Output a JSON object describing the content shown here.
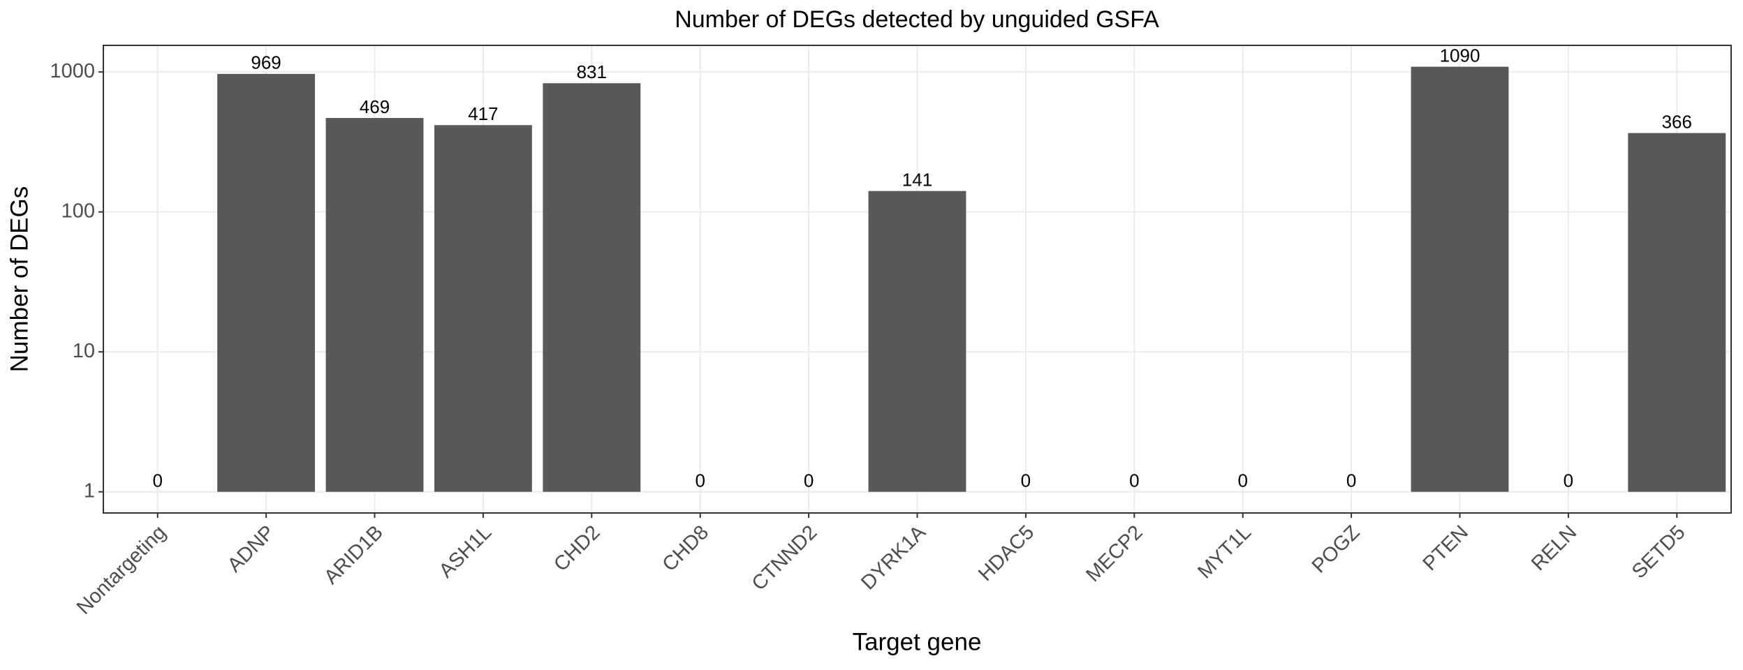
{
  "chart_data": {
    "type": "bar",
    "title": "Number of DEGs detected by unguided GSFA",
    "x_label": "Target gene",
    "y_label": "Number of DEGs",
    "categories": [
      "Nontargeting",
      "ADNP",
      "ARID1B",
      "ASH1L",
      "CHD2",
      "CHD8",
      "CTNND2",
      "DYRK1A",
      "HDAC5",
      "MECP2",
      "MYT1L",
      "POGZ",
      "PTEN",
      "RELN",
      "SETD5"
    ],
    "values": [
      0,
      969,
      469,
      417,
      831,
      0,
      0,
      141,
      0,
      0,
      0,
      0,
      1090,
      0,
      366
    ],
    "color": "#595959",
    "y_scale": "log",
    "base": 1,
    "ylim": [
      0.706,
      1549
    ],
    "yticks": [
      1,
      10,
      100,
      1000
    ],
    "grid": true
  }
}
